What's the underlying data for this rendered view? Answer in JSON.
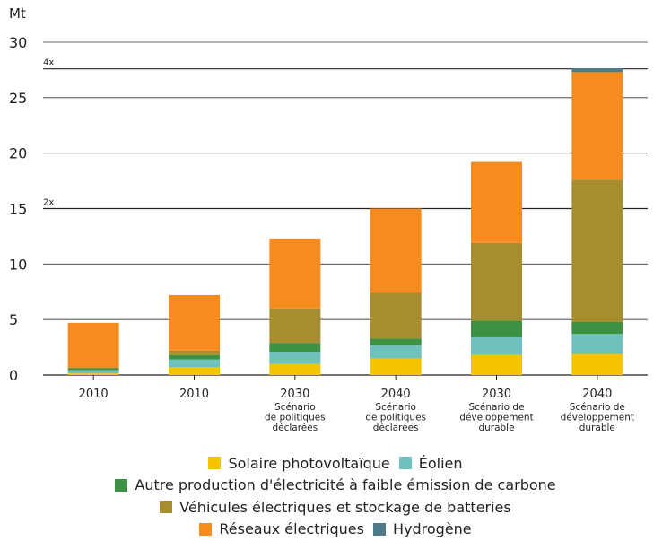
{
  "chart_data": {
    "type": "bar",
    "stacked": true,
    "y_unit_label": "Mt",
    "ylim": [
      0,
      30
    ],
    "yticks": [
      0,
      5,
      10,
      15,
      20,
      25,
      30
    ],
    "reference_lines": [
      {
        "value": 15,
        "label": "2x"
      },
      {
        "value": 27.6,
        "label": "4x"
      }
    ],
    "categories": [
      {
        "label": "2010",
        "sub": []
      },
      {
        "label": "2010",
        "sub": []
      },
      {
        "label": "2030",
        "sub": [
          "Scénario",
          "de politiques",
          "déclarées"
        ]
      },
      {
        "label": "2040",
        "sub": [
          "Scénario",
          "de politiques",
          "déclarées"
        ]
      },
      {
        "label": "2030",
        "sub": [
          "Scénario de",
          "développement",
          "durable"
        ]
      },
      {
        "label": "2040",
        "sub": [
          "Scénario de",
          "développement",
          "durable"
        ]
      }
    ],
    "series": [
      {
        "name": "Solaire photovoltaïque",
        "color": "#F5C400",
        "values": [
          0.15,
          0.7,
          1.0,
          1.5,
          1.8,
          1.9
        ]
      },
      {
        "name": "Éolien",
        "color": "#6EC1BD",
        "values": [
          0.3,
          0.7,
          1.1,
          1.2,
          1.6,
          1.8
        ]
      },
      {
        "name": "Autre production d'électricité à faible émission de carbone",
        "color": "#3E9142",
        "values": [
          0.15,
          0.4,
          0.8,
          0.6,
          1.5,
          1.1
        ]
      },
      {
        "name": "Véhicules électriques et stockage de batteries",
        "color": "#A88D2E",
        "values": [
          0.1,
          0.4,
          3.1,
          4.1,
          7.0,
          12.8
        ]
      },
      {
        "name": "Réseaux électriques",
        "color": "#F68B1F",
        "values": [
          4.0,
          5.0,
          6.3,
          7.6,
          7.3,
          9.7
        ]
      },
      {
        "name": "Hydrogène",
        "color": "#4E7B8A",
        "values": [
          0,
          0,
          0,
          0,
          0,
          0.35
        ]
      }
    ],
    "legend": {
      "placement": "bottom",
      "rows": [
        [
          0,
          1
        ],
        [
          2
        ],
        [
          3
        ],
        [
          4,
          5
        ]
      ]
    }
  }
}
